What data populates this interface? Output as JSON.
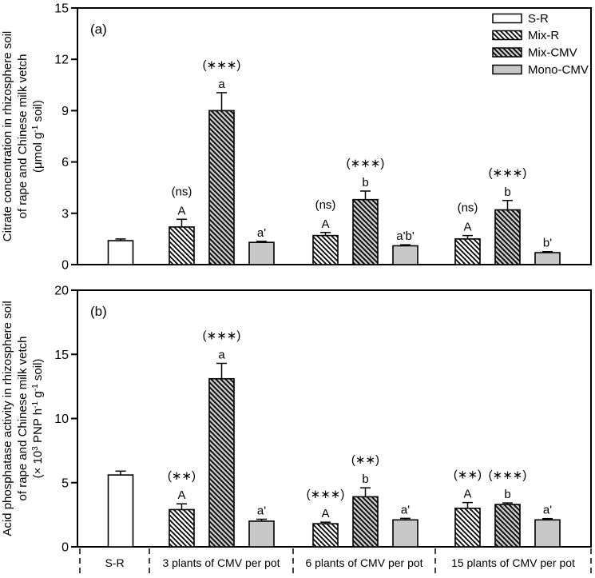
{
  "figure": {
    "background": "#ffffff",
    "ink_color": "#000000",
    "gray_fill": "#c8c8c8",
    "white_fill": "#ffffff"
  },
  "legend": {
    "position": "top-right",
    "entries": [
      {
        "label": "S-R",
        "series": "S-R"
      },
      {
        "label": "Mix-R",
        "series": "Mix-R"
      },
      {
        "label": "Mix-CMV",
        "series": "Mix-CMV"
      },
      {
        "label": "Mono-CMV",
        "series": "Mono-CMV"
      }
    ]
  },
  "series_styles": {
    "S-R": {
      "fill": "#ffffff",
      "hatch": false
    },
    "Mix-R": {
      "fill": "#ffffff",
      "hatch": true
    },
    "Mix-CMV": {
      "fill": "#c8c8c8",
      "hatch": true
    },
    "Mono-CMV": {
      "fill": "#c8c8c8",
      "hatch": false
    }
  },
  "chart_data": [
    {
      "type": "bar",
      "panel_label": "(a)",
      "ylabel_lines": [
        "Citrate concentration in rhizosphere soil",
        "of rape and Chinese milk vetch",
        "(μmol g^{-1} soil)"
      ],
      "ylim": [
        0,
        15
      ],
      "yticks": [
        0,
        3,
        6,
        9,
        12,
        15
      ],
      "grid": false,
      "groups": [
        {
          "label": "S-R",
          "bars": [
            {
              "series": "S-R",
              "value": 1.4,
              "err": 0.1,
              "sig": "",
              "letter": ""
            }
          ]
        },
        {
          "label": "3 plants of CMV per pot",
          "bars": [
            {
              "series": "Mix-R",
              "value": 2.2,
              "err": 0.45,
              "sig": "(ns)",
              "letter": "A"
            },
            {
              "series": "Mix-CMV",
              "value": 9.0,
              "err": 1.05,
              "sig": "(***)",
              "letter": "a"
            },
            {
              "series": "Mono-CMV",
              "value": 1.3,
              "err": 0.06,
              "sig": "",
              "letter": "a'"
            }
          ]
        },
        {
          "label": "6 plants of CMV per pot",
          "bars": [
            {
              "series": "Mix-R",
              "value": 1.7,
              "err": 0.18,
              "sig": "(ns)",
              "letter": "A"
            },
            {
              "series": "Mix-CMV",
              "value": 3.8,
              "err": 0.5,
              "sig": "(***)",
              "letter": "b"
            },
            {
              "series": "Mono-CMV",
              "value": 1.1,
              "err": 0.06,
              "sig": "",
              "letter": "a'b'"
            }
          ]
        },
        {
          "label": "15 plants of CMV per pot",
          "bars": [
            {
              "series": "Mix-R",
              "value": 1.5,
              "err": 0.2,
              "sig": "(ns)",
              "letter": "A"
            },
            {
              "series": "Mix-CMV",
              "value": 3.2,
              "err": 0.55,
              "sig": "(***)",
              "letter": "b"
            },
            {
              "series": "Mono-CMV",
              "value": 0.7,
              "err": 0.06,
              "sig": "",
              "letter": "b'"
            }
          ]
        }
      ]
    },
    {
      "type": "bar",
      "panel_label": "(b)",
      "ylabel_lines": [
        "Acid phosphatase activity in rhizosphere soil",
        "of rape and Chinese milk vetch",
        "(× 10^{3} PNP h^{-1} g^{-1} soil)"
      ],
      "ylim": [
        0,
        20
      ],
      "yticks": [
        0,
        5,
        10,
        15,
        20
      ],
      "grid": false,
      "groups": [
        {
          "label": "S-R",
          "bars": [
            {
              "series": "S-R",
              "value": 5.6,
              "err": 0.3,
              "sig": "",
              "letter": ""
            }
          ]
        },
        {
          "label": "3 plants of CMV per pot",
          "bars": [
            {
              "series": "Mix-R",
              "value": 2.9,
              "err": 0.45,
              "sig": "(**)",
              "letter": "A"
            },
            {
              "series": "Mix-CMV",
              "value": 13.1,
              "err": 1.2,
              "sig": "(***)",
              "letter": "a"
            },
            {
              "series": "Mono-CMV",
              "value": 2.0,
              "err": 0.15,
              "sig": "",
              "letter": "a'"
            }
          ]
        },
        {
          "label": "6 plants of CMV per pot",
          "bars": [
            {
              "series": "Mix-R",
              "value": 1.8,
              "err": 0.12,
              "sig": "(***)",
              "letter": "A"
            },
            {
              "series": "Mix-CMV",
              "value": 3.9,
              "err": 0.7,
              "sig": "(**)",
              "letter": "b"
            },
            {
              "series": "Mono-CMV",
              "value": 2.1,
              "err": 0.12,
              "sig": "",
              "letter": "a'"
            }
          ]
        },
        {
          "label": "15 plants of CMV per pot",
          "bars": [
            {
              "series": "Mix-R",
              "value": 3.0,
              "err": 0.45,
              "sig": "(**)",
              "letter": "A"
            },
            {
              "series": "Mix-CMV",
              "value": 3.3,
              "err": 0.12,
              "sig": "(***)",
              "letter": "b"
            },
            {
              "series": "Mono-CMV",
              "value": 2.1,
              "err": 0.1,
              "sig": "",
              "letter": "a'"
            }
          ]
        }
      ]
    }
  ]
}
